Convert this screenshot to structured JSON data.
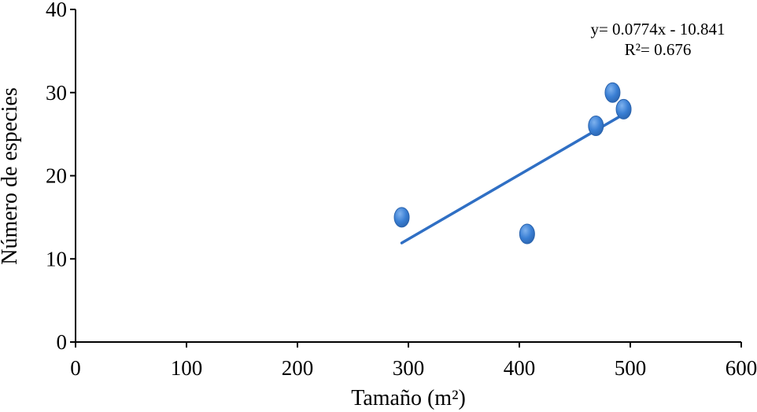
{
  "chart_data": {
    "type": "scatter",
    "xlabel": "Tamaño (m²)",
    "ylabel": "Número de especies",
    "xlim": [
      0,
      600
    ],
    "ylim": [
      0,
      40
    ],
    "x_ticks": [
      0,
      100,
      200,
      300,
      400,
      500,
      600
    ],
    "y_ticks": [
      0,
      10,
      20,
      30,
      40
    ],
    "x_tick_labels": [
      "0",
      "100",
      "200",
      "300",
      "400",
      "500",
      "600"
    ],
    "y_tick_labels": [
      "0",
      "10",
      "20",
      "30",
      "40"
    ],
    "grid": false,
    "points": [
      {
        "x": 294,
        "y": 15
      },
      {
        "x": 407,
        "y": 13
      },
      {
        "x": 469,
        "y": 26
      },
      {
        "x": 484,
        "y": 30
      },
      {
        "x": 494,
        "y": 28
      }
    ],
    "trendline": {
      "type": "linear",
      "slope": 0.0774,
      "intercept": -10.841,
      "x_range": [
        294,
        494
      ],
      "equation_label": "y= 0.0774x - 10.841",
      "r2_label": "R²= 0.676"
    },
    "colors": {
      "marker": "#3a7fd4",
      "marker_edge": "#2a63ad",
      "trendline": "#2f6fc4",
      "axis": "#000000"
    }
  }
}
